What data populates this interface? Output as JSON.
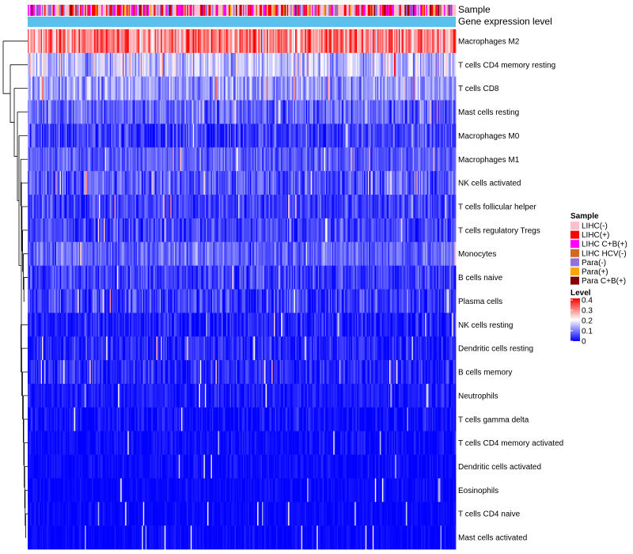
{
  "chart_data": {
    "type": "heatmap",
    "title": "",
    "annotation_tracks": [
      {
        "label": "Sample"
      },
      {
        "label": "Gene expression level"
      }
    ],
    "rows": [
      {
        "label": "Macrophages M2",
        "mean": 0.3,
        "sd": 0.06
      },
      {
        "label": "T cells CD4 memory resting",
        "mean": 0.15,
        "sd": 0.045
      },
      {
        "label": "T cells CD8",
        "mean": 0.12,
        "sd": 0.035
      },
      {
        "label": "Mast cells resting",
        "mean": 0.08,
        "sd": 0.035
      },
      {
        "label": "Macrophages M0",
        "mean": 0.05,
        "sd": 0.035
      },
      {
        "label": "Macrophages M1",
        "mean": 0.07,
        "sd": 0.025
      },
      {
        "label": "NK cells activated",
        "mean": 0.07,
        "sd": 0.035
      },
      {
        "label": "T cells follicular helper",
        "mean": 0.05,
        "sd": 0.028
      },
      {
        "label": "T cells regulatory  Tregs",
        "mean": 0.05,
        "sd": 0.028
      },
      {
        "label": "Monocytes",
        "mean": 0.08,
        "sd": 0.03
      },
      {
        "label": "B cells naive",
        "mean": 0.05,
        "sd": 0.03
      },
      {
        "label": "Plasma cells",
        "mean": 0.05,
        "sd": 0.035
      },
      {
        "label": "NK cells resting",
        "mean": 0.02,
        "sd": 0.025
      },
      {
        "label": "Dendritic cells resting",
        "mean": 0.03,
        "sd": 0.025
      },
      {
        "label": "B cells memory",
        "mean": 0.03,
        "sd": 0.025
      },
      {
        "label": "Neutrophils",
        "mean": 0.02,
        "sd": 0.015
      },
      {
        "label": "T cells gamma delta",
        "mean": 0.01,
        "sd": 0.02
      },
      {
        "label": "T cells CD4 memory activated",
        "mean": 0.01,
        "sd": 0.015
      },
      {
        "label": "Dendritic cells activated",
        "mean": 0.01,
        "sd": 0.012
      },
      {
        "label": "Eosinophils",
        "mean": 0.005,
        "sd": 0.01
      },
      {
        "label": "T cells CD4 naive",
        "mean": 0.005,
        "sd": 0.01
      },
      {
        "label": "Mast cells activated",
        "mean": 0.005,
        "sd": 0.01
      }
    ],
    "n_samples": 360,
    "sample_groups": [
      {
        "name": "LIHC(-)",
        "color": "#FFC0CB",
        "weight": 0.38
      },
      {
        "name": "LIHC(+)",
        "color": "#FF0000",
        "weight": 0.22
      },
      {
        "name": "LIHC C+B(+)",
        "color": "#FF00FF",
        "weight": 0.14
      },
      {
        "name": "LIHC HCV(-)",
        "color": "#D2691E",
        "weight": 0.04
      },
      {
        "name": "Para(-)",
        "color": "#9370DB",
        "weight": 0.12
      },
      {
        "name": "Para(+)",
        "color": "#FFA500",
        "weight": 0.06
      },
      {
        "name": "Para C+B(+)",
        "color": "#800000",
        "weight": 0.04
      }
    ],
    "gene_expression_level_color": "#5BC0EB",
    "legends": {
      "sample": {
        "title": "Sample"
      },
      "level": {
        "title": "Level",
        "range": [
          0,
          0.4
        ],
        "ticks": [
          "0.4",
          "0.3",
          "0.2",
          "0.1",
          "0"
        ],
        "colors": {
          "low": "#0000FF",
          "mid": "#FFFFFF",
          "high": "#FF0000"
        }
      }
    },
    "dendrogram": "row clustering (left side)"
  }
}
